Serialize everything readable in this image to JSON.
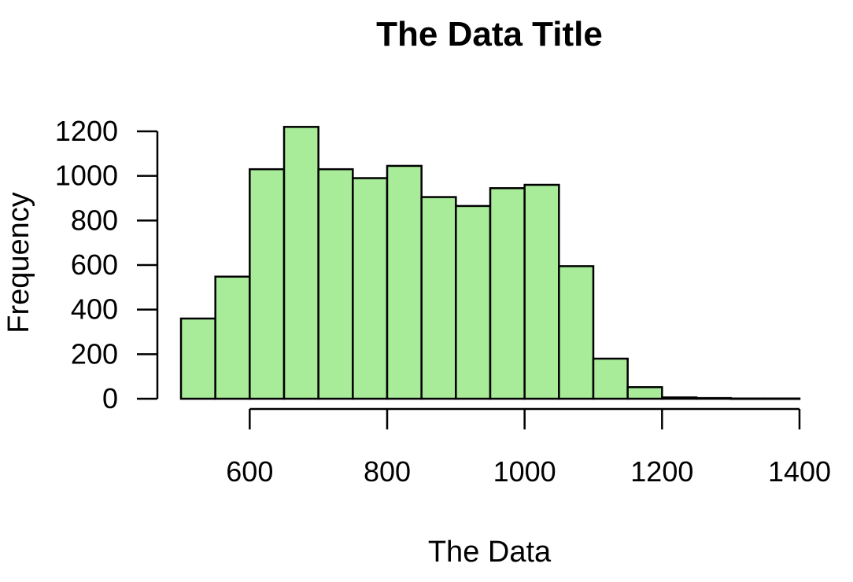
{
  "chart_data": {
    "type": "bar",
    "title": "The Data Title",
    "xlabel": "The Data",
    "ylabel": "Frequency",
    "bar_color": "#a8eb98",
    "bins": [
      {
        "x0": 500,
        "x1": 550,
        "count": 360
      },
      {
        "x0": 550,
        "x1": 600,
        "count": 548
      },
      {
        "x0": 600,
        "x1": 650,
        "count": 1030
      },
      {
        "x0": 650,
        "x1": 700,
        "count": 1220
      },
      {
        "x0": 700,
        "x1": 750,
        "count": 1030
      },
      {
        "x0": 750,
        "x1": 800,
        "count": 990
      },
      {
        "x0": 800,
        "x1": 850,
        "count": 1045
      },
      {
        "x0": 850,
        "x1": 900,
        "count": 905
      },
      {
        "x0": 900,
        "x1": 950,
        "count": 865
      },
      {
        "x0": 950,
        "x1": 1000,
        "count": 945
      },
      {
        "x0": 1000,
        "x1": 1050,
        "count": 960
      },
      {
        "x0": 1050,
        "x1": 1100,
        "count": 595
      },
      {
        "x0": 1100,
        "x1": 1150,
        "count": 180
      },
      {
        "x0": 1150,
        "x1": 1200,
        "count": 52
      },
      {
        "x0": 1200,
        "x1": 1250,
        "count": 6
      },
      {
        "x0": 1250,
        "x1": 1300,
        "count": 3
      },
      {
        "x0": 1300,
        "x1": 1350,
        "count": 1
      },
      {
        "x0": 1350,
        "x1": 1400,
        "count": 1
      }
    ],
    "xlim": [
      500,
      1400
    ],
    "ylim": [
      0,
      1200
    ],
    "xticks": [
      600,
      800,
      1000,
      1200,
      1400
    ],
    "yticks": [
      0,
      200,
      400,
      600,
      800,
      1000,
      1200
    ],
    "grid": false,
    "legend": "none"
  }
}
